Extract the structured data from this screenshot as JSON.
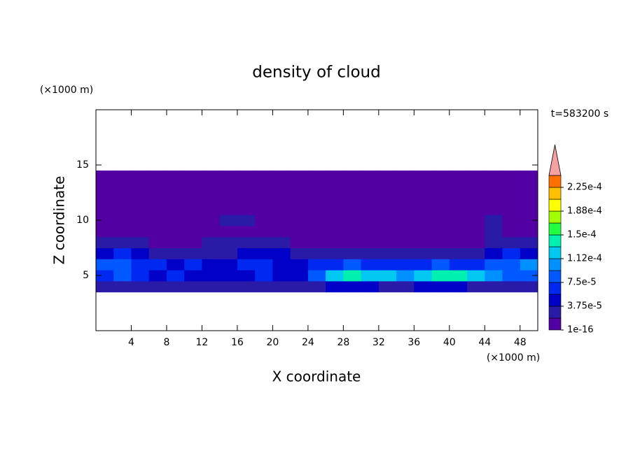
{
  "chart_data": {
    "type": "contour",
    "title": "density of cloud",
    "x_label": "X coordinate",
    "y_label": "Z coordinate",
    "x_unit": "(×1000 m)",
    "y_unit": "(×1000 m)",
    "time_label": "t=583200 s",
    "xlim": [
      0,
      50
    ],
    "ylim": [
      0,
      20
    ],
    "xticks": [
      4,
      8,
      12,
      16,
      20,
      24,
      28,
      32,
      36,
      40,
      44,
      48
    ],
    "yticks": [
      5,
      10,
      15
    ],
    "x": [
      1,
      3,
      5,
      7,
      9,
      11,
      13,
      15,
      17,
      19,
      21,
      23,
      25,
      27,
      29,
      31,
      33,
      35,
      37,
      39,
      41,
      43,
      45,
      47,
      49
    ],
    "z": [
      4,
      5,
      6,
      7,
      8,
      9,
      10,
      11,
      12,
      13,
      14
    ],
    "values": [
      [
        3e-05,
        3e-05,
        2.5e-05,
        2.5e-05,
        2.5e-05,
        2e-05,
        2e-05,
        2.5e-05,
        2.5e-05,
        2e-05,
        2e-05,
        2.5e-05,
        3e-05,
        4e-05,
        4e-05,
        4e-05,
        3e-05,
        3e-05,
        4e-05,
        4e-05,
        4e-05,
        3e-05,
        3e-05,
        2.5e-05,
        3e-05
      ],
      [
        7e-05,
        8e-05,
        6e-05,
        5e-05,
        6e-05,
        5e-05,
        4e-05,
        4e-05,
        5e-05,
        6e-05,
        4e-05,
        5e-05,
        9e-05,
        0.00012,
        0.00014,
        0.00013,
        0.00012,
        0.0001,
        0.00013,
        0.00014,
        0.000135,
        0.00012,
        0.0001,
        9e-05,
        8e-05
      ],
      [
        9e-05,
        8e-05,
        7e-05,
        6e-05,
        5e-05,
        6e-05,
        5e-05,
        4e-05,
        6e-05,
        7e-05,
        5e-05,
        4e-05,
        6e-05,
        7e-05,
        8e-05,
        7e-05,
        6e-05,
        6e-05,
        7e-05,
        8e-05,
        7e-05,
        6e-05,
        8e-05,
        9e-05,
        0.0001
      ],
      [
        5e-05,
        6e-05,
        4e-05,
        3e-05,
        2.5e-05,
        3e-05,
        2.5e-05,
        3e-05,
        4e-05,
        4.5e-05,
        4e-05,
        3e-05,
        2.5e-05,
        2e-05,
        2e-05,
        2e-05,
        2e-05,
        2e-05,
        2e-05,
        2.5e-05,
        2.5e-05,
        3e-05,
        5e-05,
        6e-05,
        4e-05
      ],
      [
        2e-05,
        2.2e-05,
        2e-05,
        1e-06,
        1e-06,
        1e-06,
        2e-05,
        2e-05,
        2.5e-05,
        2.5e-05,
        2e-05,
        1e-06,
        1e-06,
        1e-06,
        1e-06,
        1e-06,
        1e-06,
        1e-06,
        1e-06,
        1e-06,
        1e-06,
        1e-06,
        3e-05,
        2.5e-05,
        2e-05
      ],
      [
        1e-06,
        1e-06,
        1e-06,
        1e-06,
        1e-06,
        1e-06,
        1e-06,
        1e-06,
        1e-06,
        1e-06,
        1e-06,
        1e-06,
        1e-06,
        1e-06,
        1e-06,
        1e-06,
        1e-06,
        1e-06,
        1e-06,
        1e-06,
        1e-06,
        1e-06,
        2e-05,
        1e-06,
        1e-06
      ],
      [
        1e-06,
        1e-06,
        1e-06,
        1e-06,
        1e-06,
        1e-06,
        1e-06,
        2e-05,
        2e-05,
        1e-06,
        1e-06,
        1e-06,
        1e-06,
        1e-06,
        1e-06,
        1e-06,
        1e-06,
        1e-06,
        1e-06,
        1e-06,
        1e-06,
        1e-06,
        2e-05,
        1e-06,
        1e-06
      ],
      [
        1e-06,
        1e-06,
        1e-06,
        1e-06,
        1e-06,
        1e-06,
        1e-06,
        1e-06,
        1e-06,
        1e-06,
        1e-06,
        1e-06,
        1e-06,
        1e-06,
        1e-06,
        1e-06,
        1e-06,
        1e-06,
        1e-06,
        1e-06,
        1e-06,
        1e-06,
        1e-06,
        1e-06,
        1e-06
      ],
      [
        1e-06,
        1e-06,
        1e-06,
        1e-06,
        1e-06,
        1e-06,
        1e-06,
        1e-06,
        1e-06,
        1e-06,
        1e-06,
        1e-06,
        1e-06,
        1e-06,
        1e-06,
        1e-06,
        1e-06,
        1e-06,
        1e-06,
        1e-06,
        1e-06,
        1e-06,
        1e-06,
        1e-06,
        1e-06
      ],
      [
        1e-06,
        1e-06,
        1e-06,
        1e-06,
        1e-06,
        1e-06,
        1e-06,
        1e-06,
        1e-06,
        1e-06,
        1e-06,
        1e-06,
        1e-06,
        1e-06,
        1e-06,
        1e-06,
        1e-06,
        1e-06,
        1e-06,
        1e-06,
        1e-06,
        1e-06,
        1e-06,
        1e-06,
        1e-06
      ],
      [
        1e-06,
        1e-06,
        1e-06,
        1e-06,
        1e-06,
        1e-06,
        1e-06,
        1e-06,
        1e-06,
        1e-06,
        1e-06,
        1e-06,
        1e-06,
        1e-06,
        1e-06,
        1e-06,
        1e-06,
        1e-06,
        1e-06,
        1e-06,
        1e-06,
        1e-06,
        1e-06,
        1e-06,
        1e-06
      ]
    ],
    "colorbar": {
      "levels": [
        1e-16,
        1.875e-05,
        3.75e-05,
        5.625e-05,
        7.5e-05,
        9.375e-05,
        0.0001125,
        0.00013125,
        0.00015,
        0.00016875,
        0.0001875,
        0.00020625,
        0.000225,
        0.00024375
      ],
      "colors": [
        "#5200a4",
        "#2a1aa8",
        "#0000c8",
        "#0028f0",
        "#0058ff",
        "#0090ff",
        "#00c8f0",
        "#00f0b0",
        "#20ff40",
        "#a0ff00",
        "#ffff00",
        "#ffc000",
        "#ff7000"
      ],
      "extend_color": "#f4a0a0",
      "ticks": [
        {
          "value": 1e-16,
          "label": "1e-16"
        },
        {
          "value": 3.75e-05,
          "label": "3.75e-5"
        },
        {
          "value": 7.5e-05,
          "label": "7.5e-5"
        },
        {
          "value": 0.0001125,
          "label": "1.12e-4"
        },
        {
          "value": 0.00015,
          "label": "1.5e-4"
        },
        {
          "value": 0.0001875,
          "label": "1.88e-4"
        },
        {
          "value": 0.000225,
          "label": "2.25e-4"
        }
      ]
    }
  }
}
